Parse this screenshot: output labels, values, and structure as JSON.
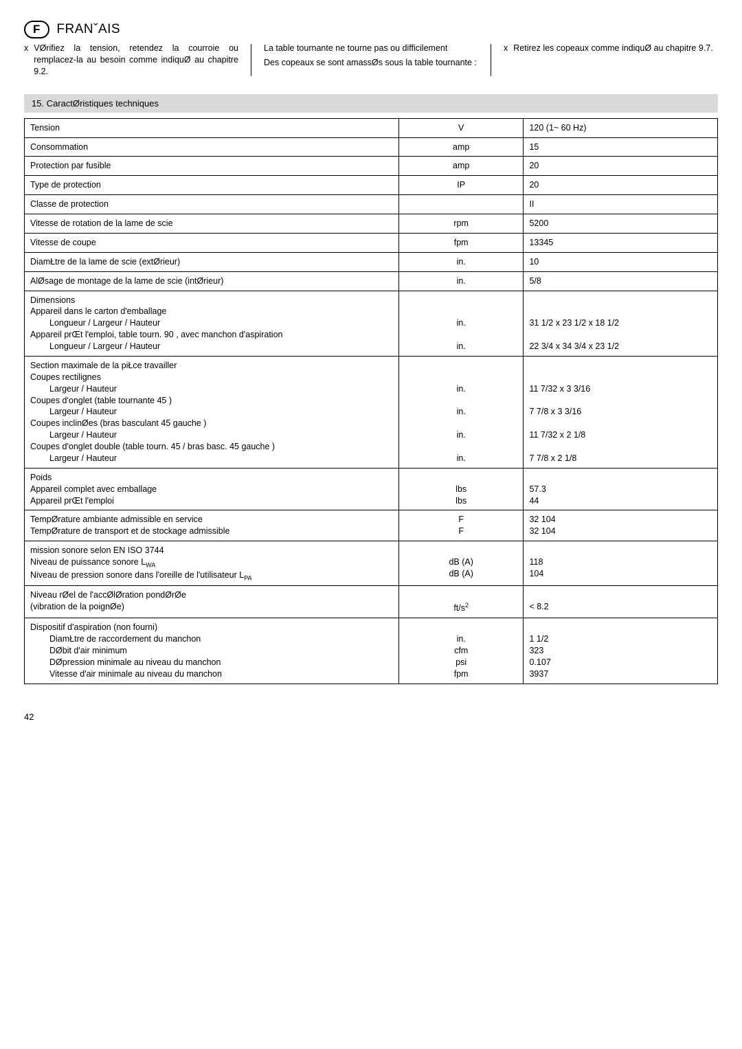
{
  "header": {
    "badge": "F",
    "lang": "FRANˇAIS"
  },
  "cols": {
    "c1": {
      "bullet": "x",
      "text": "VØrifiez la tension, retendez la cour­roie ou remplacez-la au besoin comme indiquØ au chapitre 9.2."
    },
    "c2": {
      "line1": "La table tournante  ne tourne pas ou difficilement",
      "line2": "Des copeaux se sont amassØs sous la table tournante :"
    },
    "c3": {
      "bullet": "x",
      "text": "Retirez les copeaux comme indiquØ au chapitre 9.7."
    }
  },
  "section": "15. CaractØristiques techniques",
  "rows": [
    {
      "label": "Tension",
      "unit": "V",
      "value": "120  (1~ 60 Hz)"
    },
    {
      "label": "Consommation",
      "unit": "amp",
      "value": "15"
    },
    {
      "label": "Protection par fusible",
      "unit": "amp",
      "value": "20"
    },
    {
      "label": "Type de protection",
      "unit": "IP",
      "value": "20"
    },
    {
      "label": "Classe de protection",
      "unit": "",
      "value": "II"
    },
    {
      "label": "Vitesse de rotation de la lame de scie",
      "unit": "rpm",
      "value": "5200"
    },
    {
      "label": "Vitesse de coupe",
      "unit": "fpm",
      "value": "13345"
    },
    {
      "label": "DiamŁtre de la lame de scie (extØrieur)",
      "unit": "in.",
      "value": "10"
    },
    {
      "label": "AlØsage de montage de la lame de scie (intØrieur)",
      "unit": "in.",
      "value": "5/8"
    }
  ],
  "dim": {
    "h1": "Dimensions",
    "l1": "Appareil dans le carton d'emballage",
    "l2": "Longueur / Largeur / Hauteur",
    "l3": "Appareil prŒt   l'emploi, table tourn. 90 , avec manchon d'aspiration",
    "l4": "Longueur / Largeur / Hauteur",
    "u1": "in.",
    "u2": "in.",
    "v1": "31 1/2 x 23 1/2 x 18 1/2",
    "v2": "22 3/4 x 34 3/4 x 23 1/2"
  },
  "sec": {
    "h": "Section maximale de la piŁce   travailler",
    "l1": "Coupes rectilignes",
    "s1": "Largeur / Hauteur",
    "l2": "Coupes d'onglet (table tournante  45 )",
    "s2": "Largeur / Hauteur",
    "l3": "Coupes inclinØes (bras basculant 45  gauche )",
    "s3": "Largeur / Hauteur",
    "l4": "Coupes d'onglet double (table tourn.  45  / bras basc. 45  gauche )",
    "s4": "Largeur / Hauteur",
    "u": "in.",
    "v1": "11 7/32 x 3 3/16",
    "v2": "7 7/8 x 3 3/16",
    "v3": "11 7/32 x 2 1/8",
    "v4": "7 7/8 x 2 1/8"
  },
  "poids": {
    "h": "Poids",
    "l1": "Appareil complet avec emballage",
    "l2": "Appareil prŒt   l'emploi",
    "u": "lbs",
    "v1": "57.3",
    "v2": "44"
  },
  "temp": {
    "l1": "TempØrature ambiante admissible en service",
    "l2": "TempØrature de transport et de stockage admissible",
    "u": "F",
    "v1": "32    104",
    "v2": "32    104"
  },
  "son": {
    "l1": " mission sonore selon EN ISO 3744",
    "l2a": "Niveau de puissance sonore L",
    "l2b": "WA",
    "l3a": "Niveau de pression sonore dans l'oreille de l'utilisateur L",
    "l3b": "PA",
    "u": "dB (A)",
    "v1": "118",
    "v2": "104"
  },
  "vib": {
    "l1": "Niveau rØel de l'accØlØration pondØrØe",
    "l2": "(vibration de la poignØe)",
    "ua": "ft/s",
    "ub": "2",
    "v": "< 8.2"
  },
  "asp": {
    "h": "Dispositif d'aspiration (non fourni)",
    "l1": "DiamŁtre de raccordement du manchon",
    "l2": "DØbit d'air minimum",
    "l3": "DØpression minimale au niveau du manchon",
    "l4": "Vitesse d'air minimale au niveau du manchon",
    "u1": "in.",
    "u2": "cfm",
    "u3": "psi",
    "u4": "fpm",
    "v1": "1 1/2",
    "v2": "323",
    "v3": "0.107",
    "v4": "3937"
  },
  "page": "42"
}
